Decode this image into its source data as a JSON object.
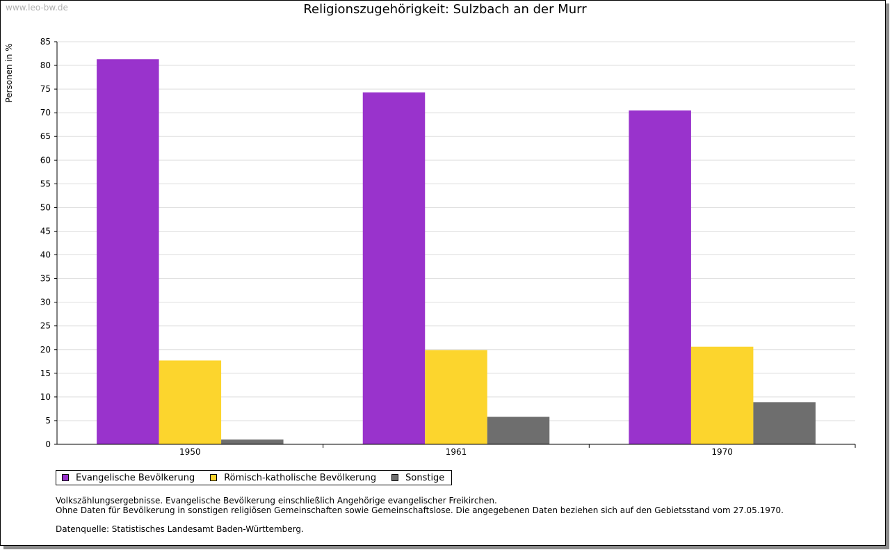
{
  "page": {
    "watermark": "www.leo-bw.de",
    "notes": [
      "Volkszählungsergebnisse. Evangelische Bevölkerung einschließlich Angehörige evangelischer Freikirchen.",
      "Ohne Daten für Bevölkerung in sonstigen religiösen Gemeinschaften sowie Gemeinschaftslose. Die angegebenen Daten beziehen sich auf den Gebietsstand vom 27.05.1970."
    ],
    "source": "Datenquelle: Statistisches Landesamt Baden-Württemberg."
  },
  "chart_data": {
    "type": "bar",
    "title": "Religionszugehörigkeit: Sulzbach an der Murr",
    "xlabel": "",
    "ylabel": "Personen in %",
    "categories": [
      "1950",
      "1961",
      "1970"
    ],
    "series": [
      {
        "name": "Evangelische Bevölkerung",
        "color": "#9933cc",
        "values": [
          81.3,
          74.3,
          70.5
        ]
      },
      {
        "name": "Römisch-katholische Bevölkerung",
        "color": "#fcd52d",
        "values": [
          17.7,
          19.9,
          20.6
        ]
      },
      {
        "name": "Sonstige",
        "color": "#6e6e6e",
        "values": [
          1.0,
          5.8,
          8.9
        ]
      }
    ],
    "ylim": [
      0,
      85
    ],
    "yticks": [
      0,
      5,
      10,
      15,
      20,
      25,
      30,
      35,
      40,
      45,
      50,
      55,
      60,
      65,
      70,
      75,
      80,
      85
    ],
    "grid": true,
    "legend": "bottom-left"
  }
}
